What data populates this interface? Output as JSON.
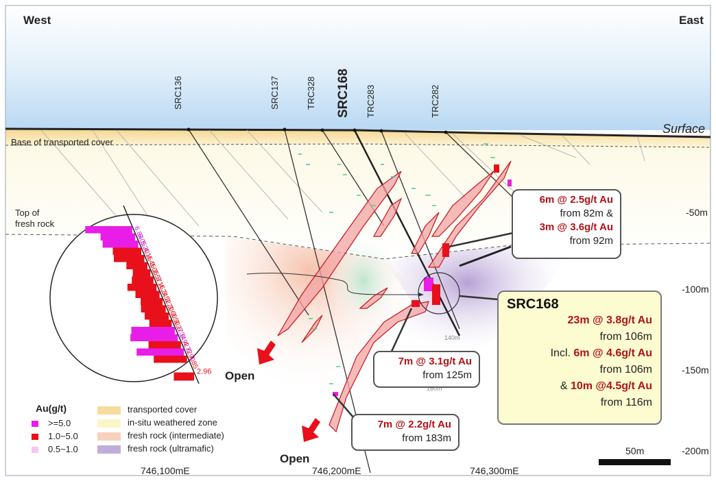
{
  "direction": {
    "west": "West",
    "east": "East"
  },
  "surface_label": "Surface",
  "cover_label": "Base of transported cover",
  "fresh_rock_label_line1": "Top of",
  "fresh_rock_label_line2": "fresh rock",
  "drillholes": [
    {
      "name": "SRC136"
    },
    {
      "name": "SRC137"
    },
    {
      "name": "TRC328"
    },
    {
      "name": "SRC168"
    },
    {
      "name": "TRC283"
    },
    {
      "name": "TRC282"
    }
  ],
  "depths": [
    "-50m",
    "-100m",
    "-150m",
    "-200m"
  ],
  "eastings": [
    "746,100mE",
    "746,200mE",
    "746,300mE"
  ],
  "hole_depths": [
    "140m",
    "160m"
  ],
  "scale_bar": "50m",
  "open_labels": [
    "Open",
    "Open"
  ],
  "inset_values": [
    "6.84",
    "5.05",
    "5.20",
    "4.15",
    "4.45",
    "3.06",
    "2.57",
    "3.16",
    "4.24",
    "3.52",
    "3.20",
    "3.60",
    "3.50",
    "3.27",
    "6.34",
    "6.92",
    "4.72",
    "6.90",
    "4.85"
  ],
  "inset_last_value": "2.96",
  "callouts": {
    "c1": {
      "line1_red": "6m @ 2.5g/t Au",
      "line2": "from 82m &",
      "line3_red": "3m @ 3.6g/t Au",
      "line4": "from 92m"
    },
    "c2": {
      "line1_red": "7m @ 3.1g/t Au",
      "line2": "from 125m"
    },
    "c3": {
      "line1_red": "7m @ 2.2g/t Au",
      "line2": "from 183m"
    },
    "c4": {
      "title": "SRC168",
      "l1_red": "23m @ 3.8g/t Au",
      "l2": "from 106m",
      "l3_prefix": "Incl.",
      "l3_red": "6m @ 4.6g/t Au",
      "l4": "from 106m",
      "l5_prefix": "&",
      "l5_red": "10m @4.5g/t Au",
      "l6": "from 116m"
    }
  },
  "legend": {
    "title": "Au(g/t)",
    "grades": [
      {
        "label": ">=5.0",
        "color": "#e81ee8"
      },
      {
        "label": "1.0~5.0",
        "color": "#e8101a"
      },
      {
        "label": "0.5~1.0",
        "color": "#f3c8ef"
      }
    ],
    "units": [
      {
        "label": "transported cover",
        "color": "#f7dca0"
      },
      {
        "label": "in-situ weathered zone",
        "color": "#fbf6c8"
      },
      {
        "label": "fresh rock (intermediate)",
        "color": "#f8d0bc"
      },
      {
        "label": "fresh rock (ultramafic)",
        "color": "#bfaedb"
      }
    ]
  }
}
